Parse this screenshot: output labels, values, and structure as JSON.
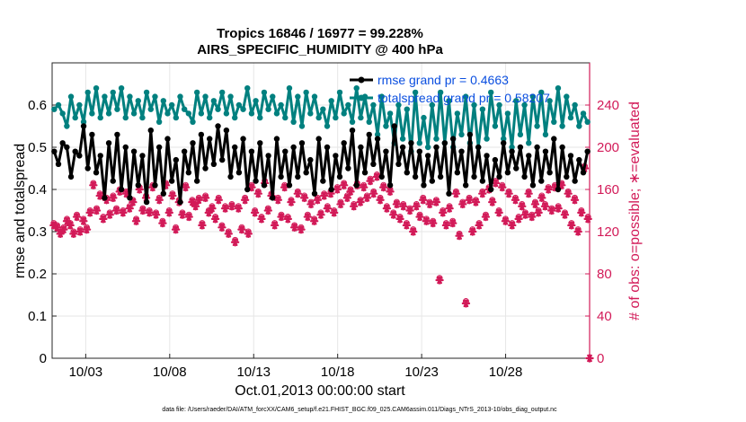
{
  "chart_data": {
    "type": "line",
    "title_line1": "Tropics 16846 / 16977 = 99.228%",
    "title_line2": "AIRS_SPECIFIC_HUMIDITY @ 400 hPa",
    "xlabel": "Oct.01,2013 00:00:00 start",
    "ylabel_left": "rmse and totalspread",
    "ylabel_right": "# of obs: o=possible; ∗=evaluated",
    "footer": "data file: /Users/raeder/DAI/ATM_forcXX/CAM6_setup/f.e21.FHIST_BGC.f09_025.CAM6assim.011/Diags_NTrS_2013-10/obs_diag_output.nc",
    "x_ticks": [
      "10/03",
      "10/08",
      "10/13",
      "10/18",
      "10/23",
      "10/28"
    ],
    "x_tick_days": [
      3,
      8,
      13,
      18,
      23,
      28
    ],
    "xlim_days": [
      1.0,
      33.0
    ],
    "ylim_left": [
      0,
      0.7
    ],
    "y_ticks_left": [
      "0",
      "0.1",
      "0.2",
      "0.3",
      "0.4",
      "0.5",
      "0.6"
    ],
    "ylim_right": [
      0,
      280
    ],
    "y_ticks_right": [
      "0",
      "40",
      "80",
      "120",
      "160",
      "200",
      "240"
    ],
    "legend_position": "top-right",
    "colors": {
      "rmse": "#000000",
      "totalspread": "#00807f",
      "obs": "#d21a58",
      "legend_text": "#0b4fe0"
    },
    "series": [
      {
        "name": "rmse grand pr = 0.4663",
        "axis": "left",
        "values": [
          0.49,
          0.46,
          0.51,
          0.5,
          0.43,
          0.49,
          0.48,
          0.55,
          0.45,
          0.53,
          0.44,
          0.48,
          0.38,
          0.51,
          0.42,
          0.53,
          0.4,
          0.5,
          0.38,
          0.49,
          0.41,
          0.48,
          0.37,
          0.54,
          0.41,
          0.5,
          0.39,
          0.52,
          0.42,
          0.47,
          0.37,
          0.49,
          0.44,
          0.51,
          0.42,
          0.53,
          0.45,
          0.52,
          0.46,
          0.55,
          0.47,
          0.54,
          0.43,
          0.5,
          0.44,
          0.52,
          0.4,
          0.49,
          0.42,
          0.51,
          0.41,
          0.48,
          0.38,
          0.52,
          0.43,
          0.49,
          0.41,
          0.5,
          0.43,
          0.51,
          0.44,
          0.47,
          0.39,
          0.52,
          0.42,
          0.5,
          0.4,
          0.48,
          0.43,
          0.51,
          0.45,
          0.54,
          0.41,
          0.5,
          0.44,
          0.53,
          0.46,
          0.52,
          0.43,
          0.49,
          0.41,
          0.55,
          0.46,
          0.5,
          0.44,
          0.51,
          0.43,
          0.49,
          0.41,
          0.48,
          0.42,
          0.5,
          0.43,
          0.51,
          0.39,
          0.52,
          0.44,
          0.49,
          0.41,
          0.53,
          0.43,
          0.5,
          0.42,
          0.48,
          0.4,
          0.47,
          0.43,
          0.51,
          0.44,
          0.49,
          0.45,
          0.5,
          0.43,
          0.48,
          0.41,
          0.5,
          0.42,
          0.49,
          0.44,
          0.52,
          0.4,
          0.5,
          0.43,
          0.48,
          0.42,
          0.47,
          0.44,
          0.49
        ]
      },
      {
        "name": "totalspread grand pr = 0.58207",
        "axis": "left",
        "values": [
          0.59,
          0.6,
          0.58,
          0.55,
          0.62,
          0.57,
          0.6,
          0.56,
          0.63,
          0.58,
          0.64,
          0.57,
          0.62,
          0.58,
          0.63,
          0.59,
          0.64,
          0.57,
          0.62,
          0.58,
          0.61,
          0.57,
          0.63,
          0.59,
          0.62,
          0.56,
          0.61,
          0.58,
          0.6,
          0.57,
          0.62,
          0.59,
          0.58,
          0.56,
          0.63,
          0.58,
          0.62,
          0.57,
          0.61,
          0.59,
          0.63,
          0.58,
          0.62,
          0.57,
          0.6,
          0.59,
          0.64,
          0.58,
          0.61,
          0.57,
          0.63,
          0.59,
          0.62,
          0.58,
          0.6,
          0.57,
          0.64,
          0.56,
          0.62,
          0.55,
          0.63,
          0.58,
          0.62,
          0.57,
          0.59,
          0.55,
          0.61,
          0.57,
          0.63,
          0.58,
          0.6,
          0.56,
          0.64,
          0.57,
          0.62,
          0.56,
          0.6,
          0.53,
          0.62,
          0.55,
          0.58,
          0.51,
          0.6,
          0.52,
          0.59,
          0.49,
          0.63,
          0.51,
          0.57,
          0.5,
          0.6,
          0.52,
          0.63,
          0.51,
          0.61,
          0.5,
          0.58,
          0.53,
          0.62,
          0.51,
          0.6,
          0.5,
          0.59,
          0.52,
          0.63,
          0.55,
          0.6,
          0.52,
          0.58,
          0.5,
          0.61,
          0.53,
          0.6,
          0.51,
          0.62,
          0.55,
          0.63,
          0.53,
          0.61,
          0.56,
          0.64,
          0.55,
          0.62,
          0.57,
          0.6,
          0.55,
          0.58,
          0.56
        ]
      }
    ],
    "obs_evaluated": {
      "name": "# of obs evaluated",
      "axis": "right",
      "values": [
        126,
        124,
        118,
        122,
        130,
        126,
        118,
        134,
        120,
        130,
        122,
        138,
        164,
        140,
        154,
        132,
        150,
        136,
        152,
        140,
        158,
        138,
        156,
        142,
        148,
        130,
        160,
        140,
        152,
        138,
        162,
        136,
        150,
        128,
        164,
        138,
        154,
        122,
        148,
        136,
        162,
        134,
        148,
        144,
        150,
        126,
        152,
        138,
        142,
        132,
        150,
        124,
        142,
        118,
        144,
        110,
        142,
        122,
        150,
        118,
        162,
        138,
        156,
        132,
        166,
        140,
        154,
        126,
        150,
        134,
        162,
        132,
        148,
        124,
        156,
        122,
        152,
        134,
        146,
        130,
        150,
        136,
        154,
        142,
        156,
        138,
        160,
        146,
        164,
        152,
        158,
        144,
        164,
        148,
        162,
        152,
        168,
        156,
        172,
        150,
        162,
        142,
        158,
        136,
        146,
        132,
        144,
        126,
        140,
        120,
        144,
        134,
        150,
        130,
        146,
        128,
        148,
        74,
        138,
        126,
        142,
        128,
        156,
        116,
        146,
        52,
        150,
        120,
        148,
        126,
        156,
        134,
        160,
        148,
        166,
        138,
        162,
        130,
        156,
        126,
        150,
        132,
        144,
        136,
        156,
        134,
        146,
        138,
        152,
        144,
        160,
        140,
        162,
        142,
        164,
        136,
        156,
        126,
        150,
        120,
        138,
        180,
        132
      ]
    },
    "obs_possible": {
      "name": "# of obs possible",
      "axis": "right",
      "values": [
        128,
        126,
        120,
        124,
        132,
        128,
        120,
        136,
        122,
        132,
        124,
        140,
        166,
        142,
        156,
        134,
        152,
        138,
        154,
        142,
        160,
        140,
        158,
        144,
        150,
        132,
        162,
        142,
        154,
        140,
        164,
        138,
        152,
        130,
        166,
        140,
        156,
        124,
        150,
        138,
        164,
        136,
        150,
        146,
        152,
        128,
        154,
        140,
        144,
        134,
        152,
        126,
        144,
        120,
        146,
        112,
        144,
        124,
        152,
        120,
        164,
        140,
        158,
        134,
        168,
        142,
        156,
        128,
        152,
        136,
        164,
        134,
        150,
        126,
        158,
        124,
        154,
        136,
        148,
        132,
        152,
        138,
        156,
        144,
        158,
        140,
        162,
        148,
        166,
        154,
        160,
        146,
        166,
        150,
        164,
        154,
        170,
        158,
        174,
        152,
        164,
        144,
        160,
        138,
        148,
        134,
        146,
        128,
        142,
        122,
        146,
        136,
        152,
        132,
        148,
        130,
        150,
        76,
        140,
        128,
        144,
        130,
        158,
        118,
        148,
        54,
        152,
        122,
        150,
        128,
        158,
        136,
        162,
        150,
        168,
        140,
        164,
        132,
        158,
        128,
        152,
        134,
        146,
        138,
        158,
        136,
        148,
        140,
        154,
        146,
        162,
        142,
        164,
        144,
        166,
        138,
        158,
        128,
        152,
        122,
        140,
        182,
        134
      ]
    }
  }
}
